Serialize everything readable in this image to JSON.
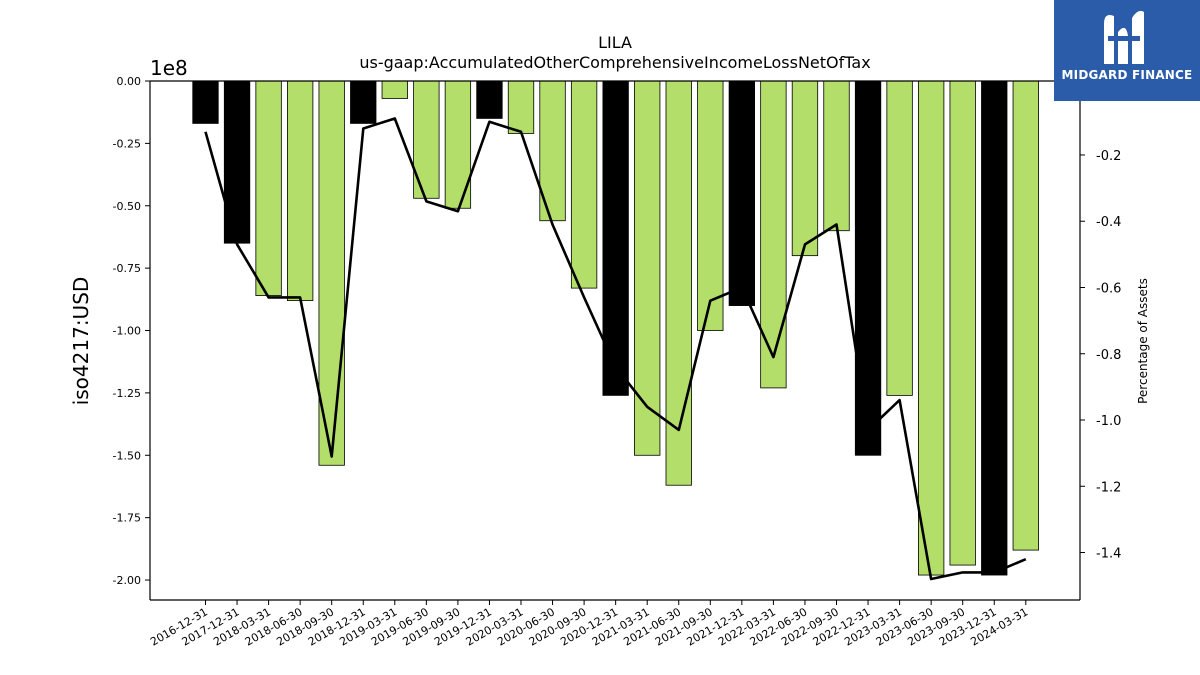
{
  "chart_data": {
    "type": "bar",
    "title": "LILA",
    "subtitle": "us-gaap:AccumulatedOtherComprehensiveIncomeLossNetOfTax",
    "ylabel": "iso4217:USD",
    "y_offset_label": "1e8",
    "y2label": "Percentage of Assets",
    "ylim": [
      -2.08,
      0
    ],
    "y2lim": [
      -1.5433,
      0.0233
    ],
    "y_ticks": [
      "0.00",
      "-0.25",
      "-0.50",
      "-0.75",
      "-1.00",
      "-1.25",
      "-1.50",
      "-1.75",
      "-2.00"
    ],
    "y2_ticks": [
      "-0.2",
      "-0.4",
      "-0.6",
      "-0.8",
      "-1.0",
      "-1.2",
      "-1.4"
    ],
    "grid": false,
    "categories": [
      "2016-12-31",
      "2017-12-31",
      "2018-03-31",
      "2018-06-30",
      "2018-09-30",
      "2018-12-31",
      "2019-03-31",
      "2019-06-30",
      "2019-09-30",
      "2019-12-31",
      "2020-03-31",
      "2020-06-30",
      "2020-09-30",
      "2020-12-31",
      "2021-03-31",
      "2021-06-30",
      "2021-09-30",
      "2021-12-31",
      "2022-03-31",
      "2022-06-30",
      "2022-09-30",
      "2022-12-31",
      "2023-03-31",
      "2023-06-30",
      "2023-09-30",
      "2023-12-31",
      "2024-03-31"
    ],
    "series": [
      {
        "values": [
          -0.17,
          -0.65,
          -0.86,
          -0.88,
          -1.54,
          -0.17,
          -0.07,
          -0.47,
          -0.51,
          -0.15,
          -0.21,
          -0.56,
          -0.83,
          -1.26,
          -1.5,
          -1.62,
          -1.0,
          -0.9,
          -1.23,
          -0.7,
          -0.6,
          -1.5,
          -1.26,
          -1.98,
          -1.94,
          -1.98,
          -1.88
        ],
        "bar_colors": [
          "#000000",
          "#000000",
          "#b3de69",
          "#b3de69",
          "#b3de69",
          "#000000",
          "#b3de69",
          "#b3de69",
          "#b3de69",
          "#000000",
          "#b3de69",
          "#b3de69",
          "#b3de69",
          "#000000",
          "#b3de69",
          "#b3de69",
          "#b3de69",
          "#000000",
          "#b3de69",
          "#b3de69",
          "#b3de69",
          "#000000",
          "#b3de69",
          "#b3de69",
          "#b3de69",
          "#000000",
          "#b3de69"
        ]
      },
      {
        "type": "line",
        "axis": "right",
        "color": "#000000",
        "values": [
          -0.13,
          -0.47,
          -0.63,
          -0.63,
          -1.11,
          -0.12,
          -0.09,
          -0.34,
          -0.37,
          -0.1,
          -0.13,
          -0.41,
          -0.63,
          -0.84,
          -0.96,
          -1.03,
          -0.64,
          -0.6,
          -0.81,
          -0.47,
          -0.41,
          -1.03,
          -0.94,
          -1.48,
          -1.46,
          -1.46,
          -1.42
        ]
      }
    ]
  },
  "logo": {
    "text": "MIDGARD FINANCE",
    "background": "#2a5caa"
  }
}
